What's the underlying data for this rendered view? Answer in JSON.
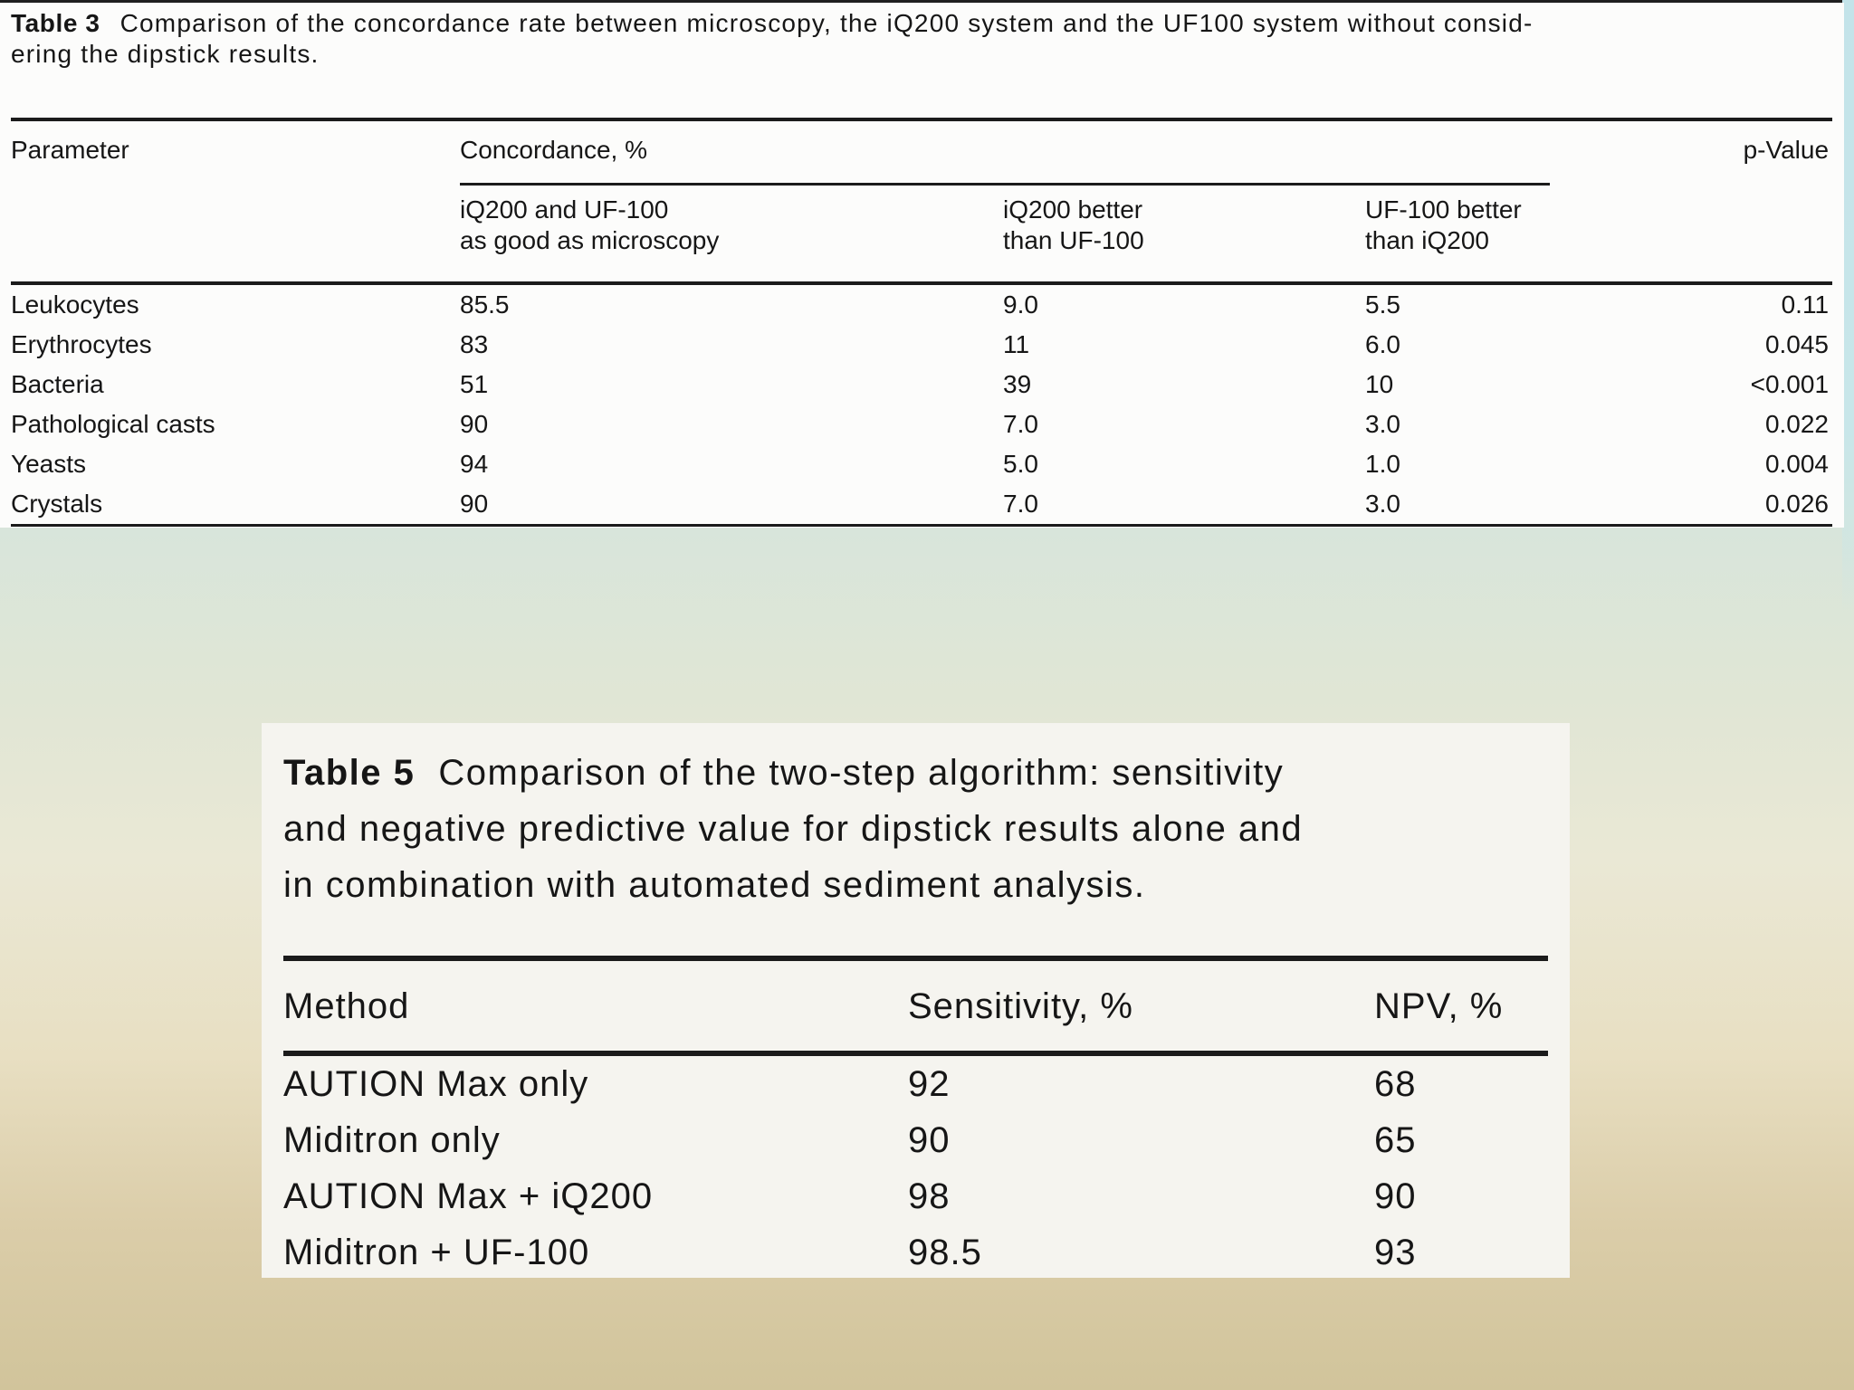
{
  "page": {
    "background_top_color": "#d8e5dc",
    "background_bottom_color": "#d1c49b",
    "accent_strip_color": "#c8e6e9",
    "panel_color": "#fcfcfb",
    "text_color": "#161616"
  },
  "table3": {
    "caption_label": "Table 3",
    "caption_line1": "Comparison of the concordance rate between microscopy, the iQ200 system and the UF100 system without consid-",
    "caption_line2": "ering the dipstick results.",
    "header": {
      "parameter": "Parameter",
      "concordance": "Concordance, %",
      "p_value": "p-Value",
      "sub1_line1": "iQ200 and UF-100",
      "sub1_line2": "as good as microscopy",
      "sub2_line1": "iQ200 better",
      "sub2_line2": "than UF-100",
      "sub3_line1": "UF-100 better",
      "sub3_line2": "than iQ200"
    },
    "rows": [
      [
        "Leukocytes",
        "85.5",
        "9.0",
        "5.5",
        "0.11"
      ],
      [
        "Erythrocytes",
        "83",
        "11",
        "6.0",
        "0.045"
      ],
      [
        "Bacteria",
        "51",
        "39",
        "10",
        "<0.001"
      ],
      [
        "Pathological casts",
        "90",
        "7.0",
        "3.0",
        "0.022"
      ],
      [
        "Yeasts",
        "94",
        "5.0",
        "1.0",
        "0.004"
      ],
      [
        "Crystals",
        "90",
        "7.0",
        "3.0",
        "0.026"
      ]
    ]
  },
  "table5": {
    "caption_label": "Table 5",
    "caption_line1": "Comparison of the two-step algorithm: sensitivity",
    "caption_line2": "and negative predictive value for dipstick results alone and",
    "caption_line3": "in combination with automated sediment analysis.",
    "header": {
      "method": "Method",
      "sensitivity": "Sensitivity, %",
      "npv": "NPV, %"
    },
    "rows": [
      [
        "AUTION Max only",
        "92",
        "68"
      ],
      [
        "Miditron only",
        "90",
        "65"
      ],
      [
        "AUTION Max + iQ200",
        "98",
        "90"
      ],
      [
        "Miditron + UF-100",
        "98.5",
        "93"
      ]
    ]
  }
}
